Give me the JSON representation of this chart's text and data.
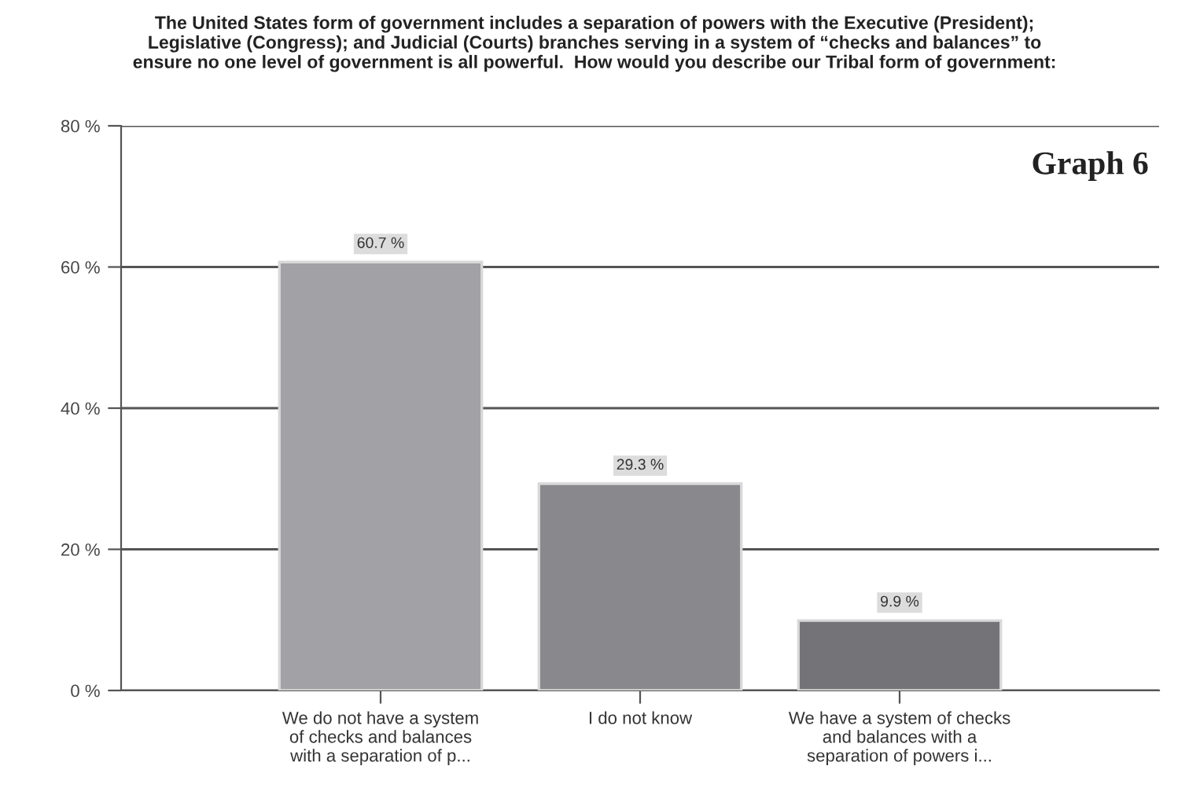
{
  "chart_data": {
    "type": "bar",
    "title": "The United States form of government includes a separation of powers with the Executive (President);\nLegislative (Congress); and Judicial (Courts) branches serving in a system of “checks and balances” to\nensure no one level of government is all powerful.  How would you describe our Tribal form of government:",
    "categories": [
      "We do not have a system\nof checks and balances\nwith a separation of p...",
      "I do not know",
      "We have a system of checks\nand balances with a\nseparation of powers i..."
    ],
    "values": [
      60.7,
      29.3,
      9.9
    ],
    "colors": [
      "#a2a2a6",
      "#89898d",
      "#747478"
    ],
    "value_labels": [
      "60.7 %",
      "29.3 %",
      "9.9 %"
    ],
    "ylim": [
      0,
      80
    ],
    "yticks": [
      {
        "value": 0,
        "label": "0 %"
      },
      {
        "value": 20,
        "label": "20 %"
      },
      {
        "value": 40,
        "label": "40 %"
      },
      {
        "value": 60,
        "label": "60 %"
      },
      {
        "value": 80,
        "label": "80 %"
      }
    ],
    "grid": "y",
    "legend": false,
    "annotations": [
      "Graph 6"
    ]
  }
}
